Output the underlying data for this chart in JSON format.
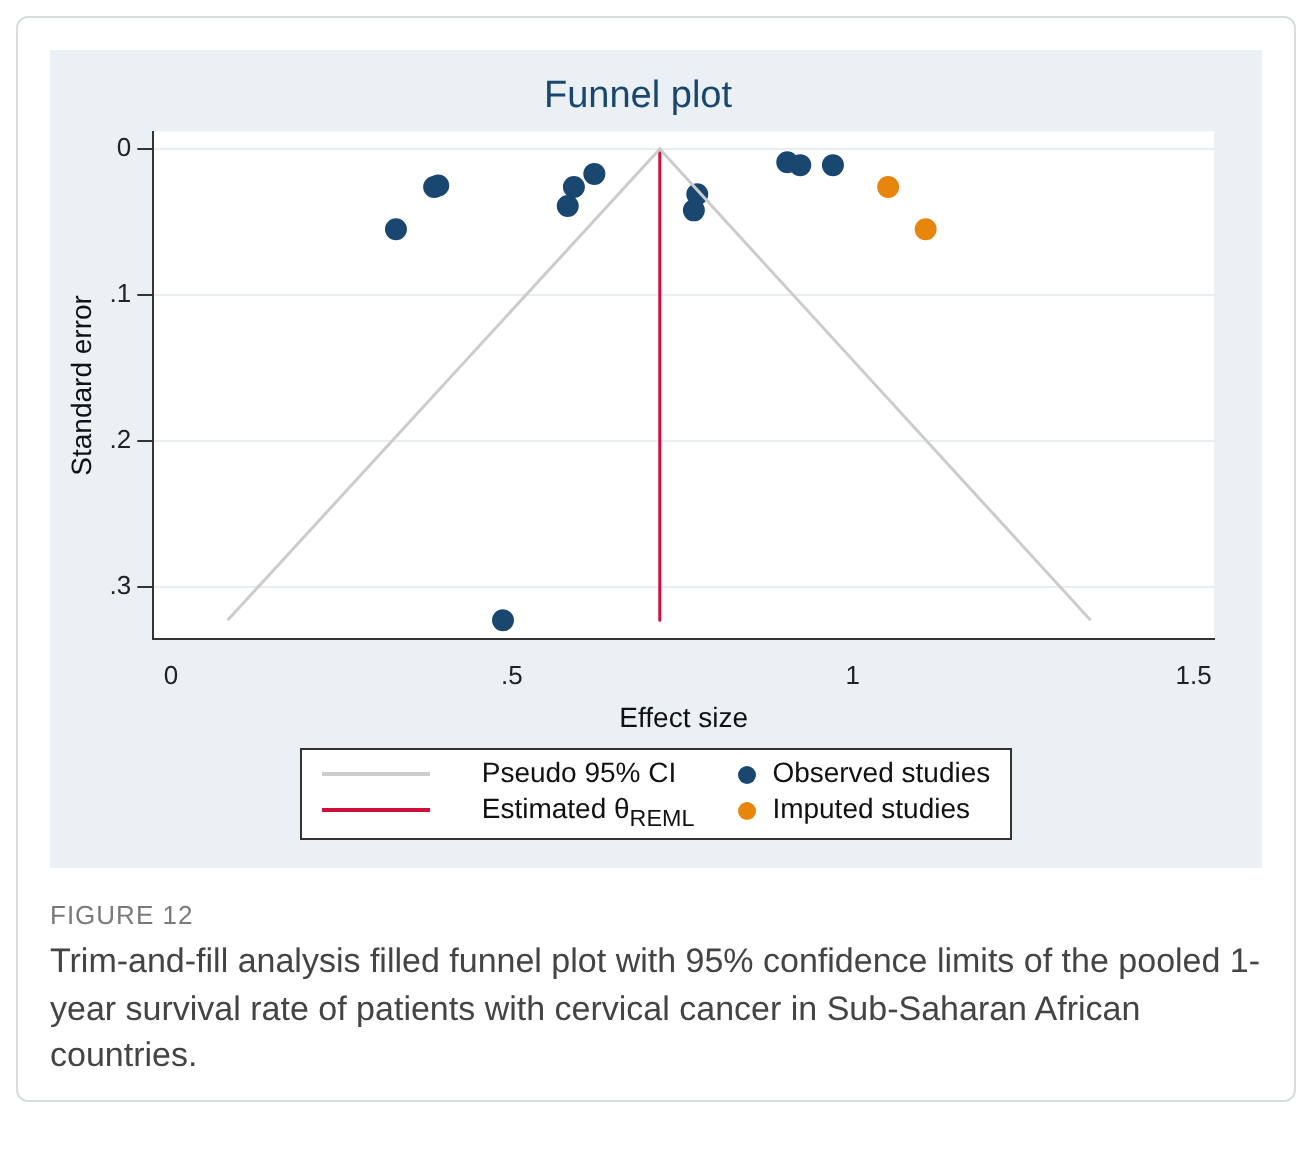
{
  "chart_data": {
    "type": "scatter",
    "title": "Funnel plot",
    "xlabel": "Effect size",
    "ylabel": "Standard error",
    "xlim": [
      -0.026,
      1.53
    ],
    "xticks": [
      0,
      {
        "value": 0.5,
        "label": ".5"
      },
      1,
      1.5
    ],
    "ylim": [
      0.336,
      -0.012
    ],
    "yticks": [
      0,
      {
        "value": 0.1,
        "label": ".1"
      },
      {
        "value": 0.2,
        "label": ".2"
      },
      {
        "value": 0.3,
        "label": ".3"
      }
    ],
    "grid": "y",
    "legend": "bottom",
    "marker": "circle",
    "series": [
      {
        "name": "Pseudo 95% CI",
        "type": "line",
        "color": "#cccccc",
        "x": [
          0.083,
          0.717,
          1.349
        ],
        "values": [
          0.323,
          0,
          0.323
        ],
        "marker": "none"
      },
      {
        "name": "Estimated θ$_{REML}$",
        "type": "line",
        "color": "#d0103a",
        "x": [
          0.717,
          0.717
        ],
        "values": [
          0,
          0.323
        ],
        "marker": "none"
      },
      {
        "name": "Observed studies",
        "color": "#1a476f",
        "x": [
          0.33,
          0.386,
          0.392,
          0.582,
          0.591,
          0.621,
          0.487,
          0.772,
          0.767,
          0.904,
          0.923,
          0.971
        ],
        "values": [
          0.055,
          0.026,
          0.025,
          0.039,
          0.026,
          0.017,
          0.323,
          0.031,
          0.042,
          0.009,
          0.011,
          0.011
        ]
      },
      {
        "name": "Imputed studies",
        "color": "#e8850c",
        "x": [
          1.052,
          1.107
        ],
        "values": [
          0.026,
          0.055
        ]
      }
    ],
    "annotations": [
      "FIGURE 12",
      "Trim-and-fill analysis filled funnel plot with 95% confidence limits of the pooled 1-year survival rate of patients with cervical cancer in Sub-Saharan African countries."
    ]
  }
}
